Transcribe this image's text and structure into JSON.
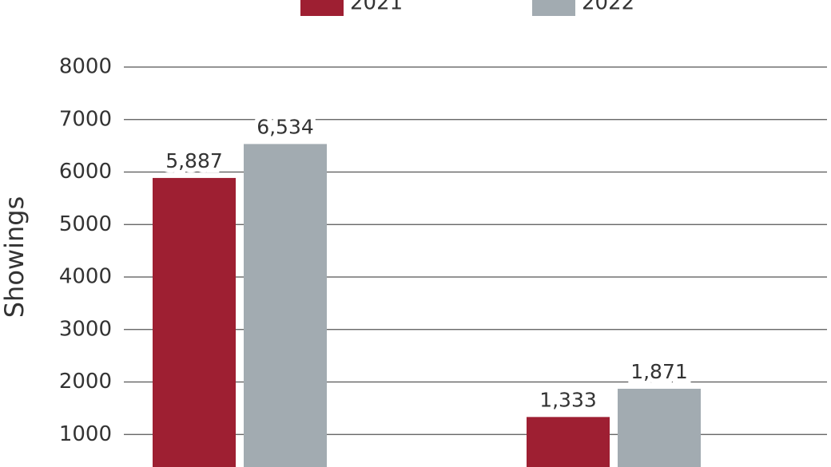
{
  "chart_data": {
    "type": "bar",
    "y_label": "Showings",
    "categories": [
      null,
      null
    ],
    "series": [
      {
        "name": "2021",
        "color": "#9e1f32",
        "values": [
          5887,
          1333
        ],
        "value_labels": [
          "5,887",
          "1,333"
        ]
      },
      {
        "name": "2022",
        "color": "#a2abb1",
        "values": [
          6534,
          1871
        ],
        "value_labels": [
          "6,534",
          "1,871"
        ]
      }
    ],
    "ylim": [
      0,
      8000
    ],
    "yticks": [
      1000,
      2000,
      3000,
      4000,
      5000,
      6000,
      7000,
      8000
    ],
    "grid": true,
    "legend": "top"
  }
}
